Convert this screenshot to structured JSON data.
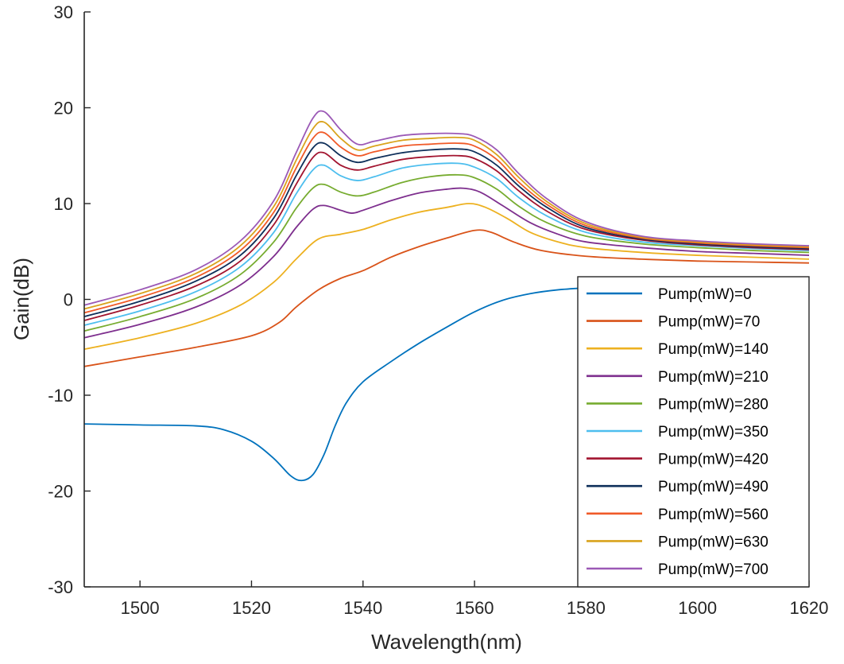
{
  "chart_data": {
    "type": "line",
    "title": "",
    "xlabel": "Wavelength(nm)",
    "ylabel": "Gain(dB)",
    "xlim": [
      1490,
      1620
    ],
    "ylim": [
      -30,
      30
    ],
    "xticks": [
      1500,
      1520,
      1540,
      1560,
      1580,
      1600,
      1620
    ],
    "yticks": [
      -30,
      -20,
      -10,
      0,
      10,
      20,
      30
    ],
    "grid": false,
    "legend_position": "bottom-right",
    "series": [
      {
        "name": "Pump(mW)=0",
        "color": "#0072BD",
        "points": [
          [
            1490,
            -13
          ],
          [
            1500,
            -13.1
          ],
          [
            1510,
            -13.2
          ],
          [
            1515,
            -13.6
          ],
          [
            1520,
            -14.8
          ],
          [
            1524,
            -16.6
          ],
          [
            1527,
            -18.4
          ],
          [
            1529,
            -18.9
          ],
          [
            1531,
            -18.3
          ],
          [
            1533,
            -16.2
          ],
          [
            1535,
            -13.2
          ],
          [
            1537,
            -10.8
          ],
          [
            1540,
            -8.6
          ],
          [
            1545,
            -6.5
          ],
          [
            1550,
            -4.6
          ],
          [
            1555,
            -2.9
          ],
          [
            1560,
            -1.3
          ],
          [
            1565,
            -0.1
          ],
          [
            1570,
            0.6
          ],
          [
            1575,
            1.0
          ],
          [
            1580,
            1.2
          ]
        ]
      },
      {
        "name": "Pump(mW)=70",
        "color": "#D95319",
        "points": [
          [
            1490,
            -7.0
          ],
          [
            1500,
            -6.0
          ],
          [
            1510,
            -5.0
          ],
          [
            1520,
            -3.8
          ],
          [
            1525,
            -2.4
          ],
          [
            1528,
            -0.8
          ],
          [
            1532,
            1.0
          ],
          [
            1536,
            2.2
          ],
          [
            1540,
            3.0
          ],
          [
            1545,
            4.4
          ],
          [
            1550,
            5.5
          ],
          [
            1555,
            6.4
          ],
          [
            1560,
            7.2
          ],
          [
            1563,
            7.0
          ],
          [
            1567,
            6.0
          ],
          [
            1572,
            5.1
          ],
          [
            1580,
            4.5
          ],
          [
            1590,
            4.2
          ],
          [
            1600,
            4.0
          ],
          [
            1610,
            3.9
          ],
          [
            1620,
            3.8
          ]
        ]
      },
      {
        "name": "Pump(mW)=140",
        "color": "#EDB120",
        "points": [
          [
            1490,
            -5.2
          ],
          [
            1500,
            -4.0
          ],
          [
            1510,
            -2.5
          ],
          [
            1518,
            -0.6
          ],
          [
            1524,
            1.8
          ],
          [
            1528,
            4.2
          ],
          [
            1532,
            6.3
          ],
          [
            1536,
            6.8
          ],
          [
            1540,
            7.3
          ],
          [
            1545,
            8.3
          ],
          [
            1550,
            9.1
          ],
          [
            1555,
            9.6
          ],
          [
            1559,
            10.0
          ],
          [
            1562,
            9.6
          ],
          [
            1566,
            8.4
          ],
          [
            1570,
            7.0
          ],
          [
            1575,
            6.0
          ],
          [
            1580,
            5.4
          ],
          [
            1590,
            4.9
          ],
          [
            1600,
            4.6
          ],
          [
            1610,
            4.4
          ],
          [
            1620,
            4.2
          ]
        ]
      },
      {
        "name": "Pump(mW)=210",
        "color": "#7E2F8E",
        "points": [
          [
            1490,
            -4.0
          ],
          [
            1500,
            -2.6
          ],
          [
            1510,
            -0.8
          ],
          [
            1518,
            1.5
          ],
          [
            1524,
            4.5
          ],
          [
            1528,
            7.5
          ],
          [
            1531,
            9.4
          ],
          [
            1533,
            9.8
          ],
          [
            1536,
            9.3
          ],
          [
            1538,
            9.0
          ],
          [
            1540,
            9.3
          ],
          [
            1545,
            10.3
          ],
          [
            1550,
            11.1
          ],
          [
            1555,
            11.5
          ],
          [
            1558,
            11.6
          ],
          [
            1561,
            11.2
          ],
          [
            1565,
            9.8
          ],
          [
            1570,
            8.0
          ],
          [
            1575,
            6.8
          ],
          [
            1580,
            6.0
          ],
          [
            1590,
            5.4
          ],
          [
            1600,
            5.0
          ],
          [
            1610,
            4.8
          ],
          [
            1620,
            4.6
          ]
        ]
      },
      {
        "name": "Pump(mW)=280",
        "color": "#77AC30",
        "points": [
          [
            1490,
            -3.3
          ],
          [
            1500,
            -1.8
          ],
          [
            1510,
            0.1
          ],
          [
            1518,
            2.6
          ],
          [
            1524,
            6.0
          ],
          [
            1528,
            9.5
          ],
          [
            1531,
            11.6
          ],
          [
            1533,
            12.0
          ],
          [
            1536,
            11.2
          ],
          [
            1539,
            10.8
          ],
          [
            1542,
            11.2
          ],
          [
            1547,
            12.2
          ],
          [
            1552,
            12.8
          ],
          [
            1557,
            13.0
          ],
          [
            1560,
            12.7
          ],
          [
            1564,
            11.5
          ],
          [
            1568,
            9.7
          ],
          [
            1573,
            8.0
          ],
          [
            1580,
            6.6
          ],
          [
            1590,
            5.8
          ],
          [
            1600,
            5.4
          ],
          [
            1610,
            5.1
          ],
          [
            1620,
            4.9
          ]
        ]
      },
      {
        "name": "Pump(mW)=350",
        "color": "#4DBEEE",
        "points": [
          [
            1490,
            -2.7
          ],
          [
            1500,
            -1.2
          ],
          [
            1510,
            0.8
          ],
          [
            1518,
            3.4
          ],
          [
            1524,
            7.0
          ],
          [
            1528,
            11.0
          ],
          [
            1531,
            13.5
          ],
          [
            1533,
            14.0
          ],
          [
            1536,
            12.9
          ],
          [
            1539,
            12.4
          ],
          [
            1542,
            12.8
          ],
          [
            1547,
            13.7
          ],
          [
            1552,
            14.1
          ],
          [
            1557,
            14.2
          ],
          [
            1560,
            13.8
          ],
          [
            1564,
            12.6
          ],
          [
            1568,
            10.6
          ],
          [
            1573,
            8.7
          ],
          [
            1580,
            7.0
          ],
          [
            1590,
            6.0
          ],
          [
            1600,
            5.6
          ],
          [
            1610,
            5.3
          ],
          [
            1620,
            5.1
          ]
        ]
      },
      {
        "name": "Pump(mW)=420",
        "color": "#A2142F",
        "points": [
          [
            1490,
            -2.2
          ],
          [
            1500,
            -0.6
          ],
          [
            1510,
            1.4
          ],
          [
            1518,
            4.0
          ],
          [
            1524,
            7.8
          ],
          [
            1528,
            12.0
          ],
          [
            1531,
            14.8
          ],
          [
            1533,
            15.3
          ],
          [
            1536,
            14.0
          ],
          [
            1539,
            13.5
          ],
          [
            1542,
            13.9
          ],
          [
            1547,
            14.6
          ],
          [
            1552,
            14.9
          ],
          [
            1557,
            15.0
          ],
          [
            1560,
            14.7
          ],
          [
            1564,
            13.4
          ],
          [
            1568,
            11.3
          ],
          [
            1573,
            9.2
          ],
          [
            1580,
            7.3
          ],
          [
            1590,
            6.2
          ],
          [
            1600,
            5.7
          ],
          [
            1610,
            5.4
          ],
          [
            1620,
            5.2
          ]
        ]
      },
      {
        "name": "Pump(mW)=490",
        "color": "#0E2F5A",
        "points": [
          [
            1490,
            -1.8
          ],
          [
            1500,
            -0.2
          ],
          [
            1510,
            1.9
          ],
          [
            1518,
            4.6
          ],
          [
            1524,
            8.5
          ],
          [
            1528,
            12.9
          ],
          [
            1531,
            15.8
          ],
          [
            1533,
            16.3
          ],
          [
            1536,
            15.0
          ],
          [
            1539,
            14.3
          ],
          [
            1542,
            14.7
          ],
          [
            1547,
            15.3
          ],
          [
            1552,
            15.6
          ],
          [
            1557,
            15.7
          ],
          [
            1560,
            15.4
          ],
          [
            1564,
            14.0
          ],
          [
            1568,
            11.8
          ],
          [
            1573,
            9.6
          ],
          [
            1580,
            7.5
          ],
          [
            1590,
            6.3
          ],
          [
            1600,
            5.8
          ],
          [
            1610,
            5.5
          ],
          [
            1620,
            5.3
          ]
        ]
      },
      {
        "name": "Pump(mW)=560",
        "color": "#F05A28",
        "points": [
          [
            1490,
            -1.4
          ],
          [
            1500,
            0.2
          ],
          [
            1510,
            2.3
          ],
          [
            1518,
            5.1
          ],
          [
            1524,
            9.1
          ],
          [
            1528,
            13.7
          ],
          [
            1531,
            16.8
          ],
          [
            1533,
            17.4
          ],
          [
            1536,
            15.9
          ],
          [
            1539,
            15.0
          ],
          [
            1542,
            15.4
          ],
          [
            1547,
            16.0
          ],
          [
            1552,
            16.2
          ],
          [
            1557,
            16.3
          ],
          [
            1560,
            16.0
          ],
          [
            1564,
            14.6
          ],
          [
            1568,
            12.2
          ],
          [
            1573,
            9.9
          ],
          [
            1580,
            7.7
          ],
          [
            1590,
            6.4
          ],
          [
            1600,
            5.9
          ],
          [
            1610,
            5.6
          ],
          [
            1620,
            5.4
          ]
        ]
      },
      {
        "name": "Pump(mW)=630",
        "color": "#D9A31C",
        "points": [
          [
            1490,
            -1.0
          ],
          [
            1500,
            0.6
          ],
          [
            1510,
            2.7
          ],
          [
            1518,
            5.6
          ],
          [
            1524,
            9.7
          ],
          [
            1528,
            14.5
          ],
          [
            1531,
            17.8
          ],
          [
            1533,
            18.5
          ],
          [
            1536,
            16.8
          ],
          [
            1539,
            15.6
          ],
          [
            1542,
            16.0
          ],
          [
            1547,
            16.6
          ],
          [
            1552,
            16.8
          ],
          [
            1557,
            16.9
          ],
          [
            1560,
            16.6
          ],
          [
            1564,
            15.1
          ],
          [
            1568,
            12.7
          ],
          [
            1573,
            10.2
          ],
          [
            1580,
            7.9
          ],
          [
            1590,
            6.5
          ],
          [
            1600,
            6.0
          ],
          [
            1610,
            5.7
          ],
          [
            1620,
            5.5
          ]
        ]
      },
      {
        "name": "Pump(mW)=700",
        "color": "#9B59B6",
        "points": [
          [
            1490,
            -0.6
          ],
          [
            1500,
            1.0
          ],
          [
            1510,
            3.1
          ],
          [
            1518,
            6.1
          ],
          [
            1524,
            10.3
          ],
          [
            1528,
            15.3
          ],
          [
            1531,
            18.9
          ],
          [
            1533,
            19.6
          ],
          [
            1536,
            17.7
          ],
          [
            1539,
            16.2
          ],
          [
            1542,
            16.5
          ],
          [
            1547,
            17.1
          ],
          [
            1552,
            17.3
          ],
          [
            1557,
            17.3
          ],
          [
            1560,
            17.0
          ],
          [
            1564,
            15.6
          ],
          [
            1568,
            13.1
          ],
          [
            1573,
            10.5
          ],
          [
            1580,
            8.1
          ],
          [
            1590,
            6.6
          ],
          [
            1600,
            6.1
          ],
          [
            1610,
            5.8
          ],
          [
            1620,
            5.6
          ]
        ]
      }
    ]
  }
}
